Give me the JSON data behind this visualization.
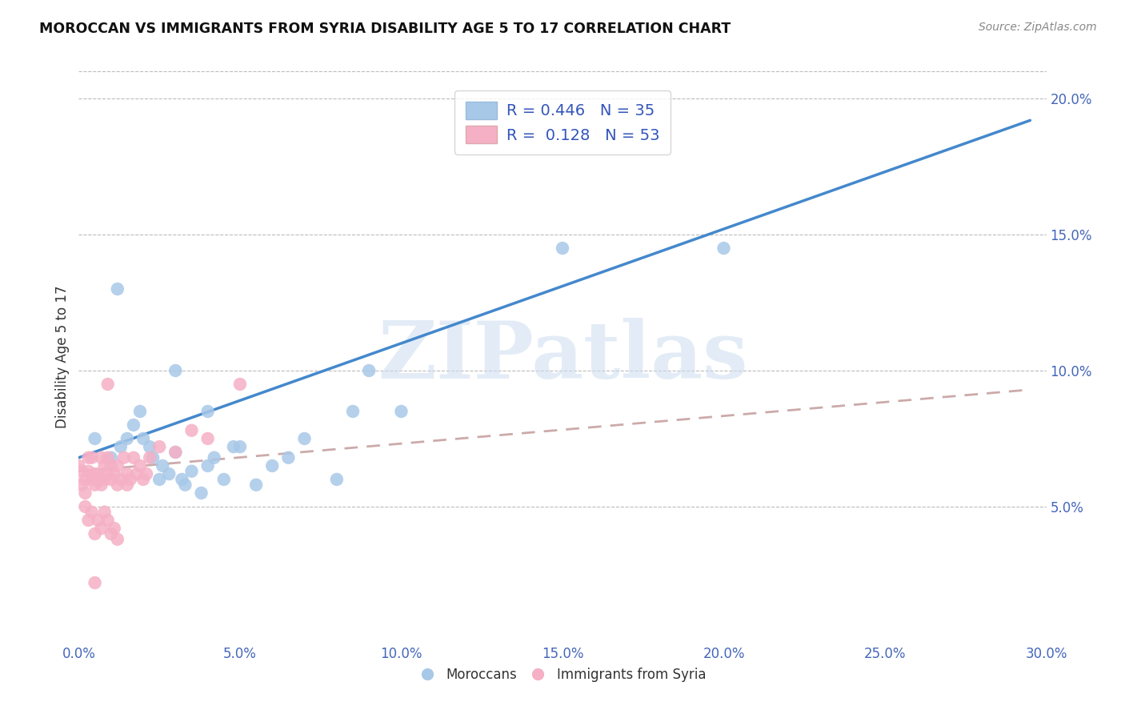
{
  "title": "MOROCCAN VS IMMIGRANTS FROM SYRIA DISABILITY AGE 5 TO 17 CORRELATION CHART",
  "source": "Source: ZipAtlas.com",
  "ylabel": "Disability Age 5 to 17",
  "xlim": [
    0.0,
    0.3
  ],
  "ylim": [
    0.0,
    0.21
  ],
  "xtick_labels": [
    "0.0%",
    "5.0%",
    "10.0%",
    "15.0%",
    "20.0%",
    "25.0%",
    "30.0%"
  ],
  "xtick_vals": [
    0.0,
    0.05,
    0.1,
    0.15,
    0.2,
    0.25,
    0.3
  ],
  "ytick_labels": [
    "5.0%",
    "10.0%",
    "15.0%",
    "20.0%"
  ],
  "ytick_vals": [
    0.05,
    0.1,
    0.15,
    0.2
  ],
  "moroccan_color": "#a8c8e8",
  "syrian_color": "#f5b0c5",
  "moroccan_R": 0.446,
  "moroccan_N": 35,
  "syrian_R": 0.128,
  "syrian_N": 53,
  "moroccan_line_color": "#4488cc",
  "syrian_line_color": "#cc6688",
  "syrian_dash_color": "#ccaaaa",
  "watermark_text": "ZIPatlas",
  "legend_R1": "R = 0.446",
  "legend_N1": "N = 35",
  "legend_R2": "R =  0.128",
  "legend_N2": "N = 53",
  "moroccan_scatter_x": [
    0.005,
    0.01,
    0.013,
    0.015,
    0.017,
    0.019,
    0.02,
    0.022,
    0.023,
    0.025,
    0.026,
    0.028,
    0.03,
    0.032,
    0.033,
    0.035,
    0.038,
    0.04,
    0.042,
    0.045,
    0.048,
    0.05,
    0.055,
    0.06,
    0.065,
    0.07,
    0.08,
    0.085,
    0.09,
    0.1,
    0.03,
    0.04,
    0.012,
    0.15,
    0.2
  ],
  "moroccan_scatter_y": [
    0.075,
    0.068,
    0.072,
    0.075,
    0.08,
    0.085,
    0.075,
    0.072,
    0.068,
    0.06,
    0.065,
    0.062,
    0.07,
    0.06,
    0.058,
    0.063,
    0.055,
    0.065,
    0.068,
    0.06,
    0.072,
    0.072,
    0.058,
    0.065,
    0.068,
    0.075,
    0.06,
    0.085,
    0.1,
    0.085,
    0.1,
    0.085,
    0.13,
    0.145,
    0.145
  ],
  "syrian_scatter_x": [
    0.0,
    0.001,
    0.001,
    0.002,
    0.002,
    0.003,
    0.003,
    0.004,
    0.004,
    0.005,
    0.005,
    0.006,
    0.006,
    0.007,
    0.007,
    0.008,
    0.008,
    0.009,
    0.009,
    0.01,
    0.01,
    0.011,
    0.012,
    0.012,
    0.013,
    0.014,
    0.015,
    0.015,
    0.016,
    0.017,
    0.018,
    0.019,
    0.02,
    0.021,
    0.022,
    0.002,
    0.003,
    0.004,
    0.005,
    0.006,
    0.007,
    0.008,
    0.009,
    0.01,
    0.011,
    0.012,
    0.025,
    0.03,
    0.035,
    0.04,
    0.005,
    0.05,
    0.009
  ],
  "syrian_scatter_y": [
    0.065,
    0.063,
    0.058,
    0.06,
    0.055,
    0.068,
    0.063,
    0.068,
    0.06,
    0.062,
    0.058,
    0.062,
    0.06,
    0.058,
    0.068,
    0.065,
    0.06,
    0.068,
    0.062,
    0.06,
    0.065,
    0.062,
    0.065,
    0.058,
    0.06,
    0.068,
    0.062,
    0.058,
    0.06,
    0.068,
    0.062,
    0.065,
    0.06,
    0.062,
    0.068,
    0.05,
    0.045,
    0.048,
    0.04,
    0.045,
    0.042,
    0.048,
    0.045,
    0.04,
    0.042,
    0.038,
    0.072,
    0.07,
    0.078,
    0.075,
    0.022,
    0.095,
    0.095
  ],
  "moroccan_line_x0": 0.0,
  "moroccan_line_y0": 0.068,
  "moroccan_line_x1": 0.295,
  "moroccan_line_y1": 0.192,
  "syrian_line_x0": 0.0,
  "syrian_line_y0": 0.063,
  "syrian_line_x1": 0.295,
  "syrian_line_y1": 0.093
}
